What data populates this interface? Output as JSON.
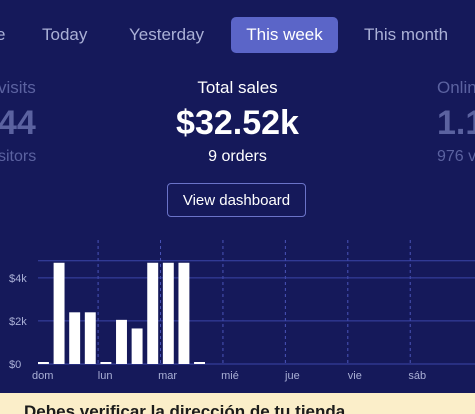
{
  "tabs": [
    {
      "label": "e",
      "active": false
    },
    {
      "label": "Today",
      "active": false
    },
    {
      "label": "Yesterday",
      "active": false
    },
    {
      "label": "This week",
      "active": true
    },
    {
      "label": "This month",
      "active": false
    }
  ],
  "stats": {
    "left": {
      "label": "visits",
      "value": "44",
      "sub": "sitors"
    },
    "center": {
      "label": "Total sales",
      "value": "$32.52k",
      "sub": "9 orders"
    },
    "right": {
      "label": "Onlin",
      "value": "1.1",
      "sub": "976 v"
    }
  },
  "view_button": "View dashboard",
  "colors": {
    "background": "#15195a",
    "accent": "#5b65c8",
    "bar": "#ffffff",
    "grid": "#3b45a8",
    "banner": "#fbeec9"
  },
  "chart_data": {
    "type": "bar",
    "x_labels": [
      "dom",
      "lun",
      "mar",
      "mié",
      "jue",
      "vie",
      "sáb"
    ],
    "ytick_labels": [
      "$0",
      "$2k",
      "$4k"
    ],
    "ylim": [
      0,
      5200
    ],
    "bins_per_label": 4,
    "values": [
      80,
      4700,
      2400,
      2400,
      80,
      2050,
      1650,
      4700,
      4700,
      4700,
      80,
      0,
      0,
      0,
      0,
      0,
      0,
      0,
      0,
      0,
      0,
      0,
      0,
      0,
      0,
      0,
      0,
      0
    ],
    "grid": true
  },
  "banner": {
    "text": "Debes verificar la dirección de tu tienda"
  }
}
